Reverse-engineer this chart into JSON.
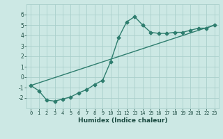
{
  "xlabel": "Humidex (Indice chaleur)",
  "ylabel": "",
  "xlim": [
    -0.5,
    23.5
  ],
  "ylim": [
    -3,
    7
  ],
  "xticks": [
    0,
    1,
    2,
    3,
    4,
    5,
    6,
    7,
    8,
    9,
    10,
    11,
    12,
    13,
    14,
    15,
    16,
    17,
    18,
    19,
    20,
    21,
    22,
    23
  ],
  "yticks": [
    -2,
    -1,
    0,
    1,
    2,
    3,
    4,
    5,
    6
  ],
  "line_color": "#2e7d6e",
  "bg_color": "#cce8e4",
  "grid_color": "#aacfcb",
  "line1_x": [
    0,
    1,
    2,
    3,
    4,
    5,
    6,
    7,
    8,
    9,
    10,
    11,
    12,
    13,
    14,
    15,
    16,
    17,
    18,
    19,
    20,
    21,
    22,
    23
  ],
  "line1_y": [
    -0.8,
    -1.3,
    -2.2,
    -2.3,
    -2.1,
    -1.9,
    -1.5,
    -1.2,
    -0.7,
    -0.3,
    1.5,
    3.8,
    5.3,
    5.8,
    5.0,
    4.3,
    4.2,
    4.2,
    4.3,
    4.3,
    4.5,
    4.7,
    4.7,
    5.0
  ],
  "line2_x": [
    0,
    23
  ],
  "line2_y": [
    -0.8,
    5.0
  ],
  "marker": "D",
  "marker_size": 2.5,
  "line_width": 1.0
}
